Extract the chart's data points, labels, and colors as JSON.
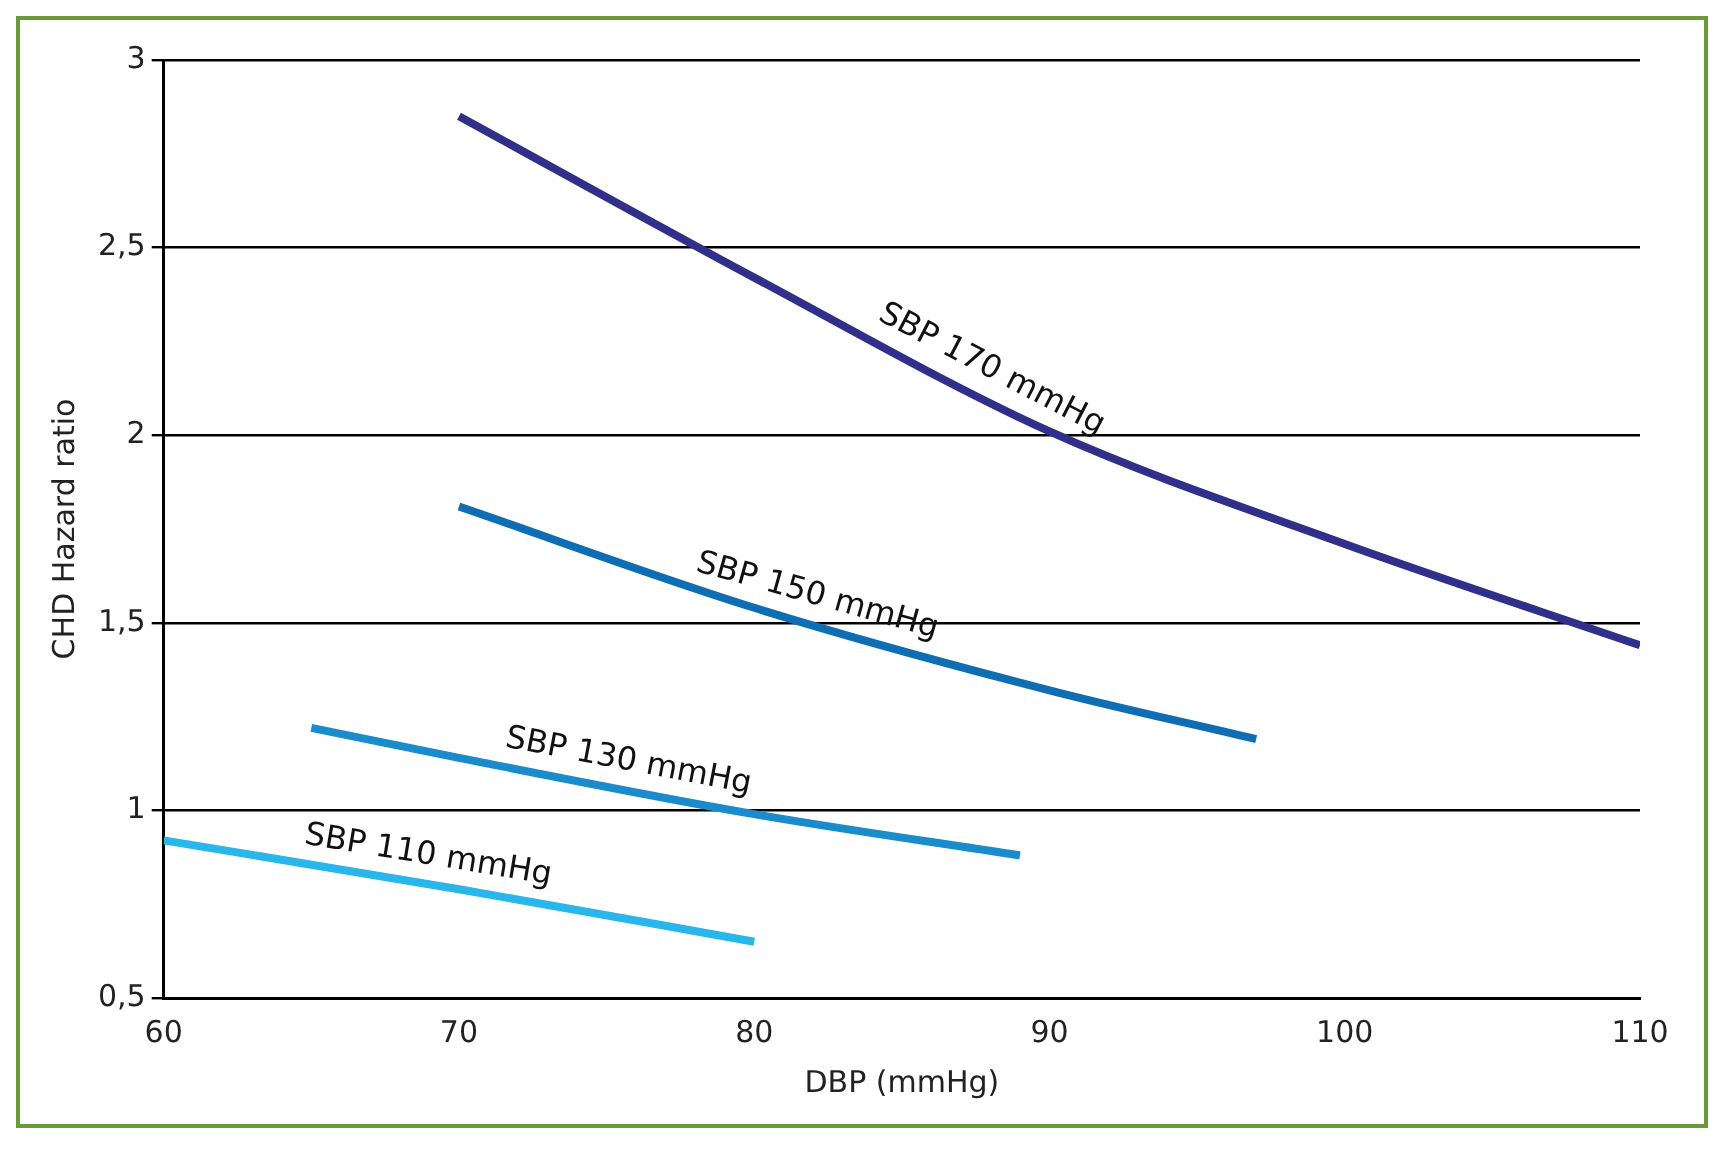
{
  "chart_data": {
    "type": "line",
    "xlabel": "DBP (mmHg)",
    "ylabel": "CHD Hazard ratio",
    "xlim": [
      60,
      110
    ],
    "xticks": [
      60,
      70,
      80,
      90,
      100,
      110
    ],
    "ylim": [
      0.5,
      3
    ],
    "yticks": [
      {
        "value": 0.5,
        "label": "0,5"
      },
      1,
      {
        "value": 1.5,
        "label": "1,5"
      },
      2,
      {
        "value": 2.5,
        "label": "2,5"
      },
      3
    ],
    "grid": "y",
    "legend": false,
    "marker": "none",
    "line_style": "solid",
    "series": [
      {
        "name": "SBP 170 mmHg",
        "color": "#302f8a",
        "x": [
          70,
          80,
          90,
          100,
          110
        ],
        "values": [
          2.85,
          2.42,
          2.01,
          1.71,
          1.44
        ]
      },
      {
        "name": "SBP 150 mmHg",
        "color": "#0f6db3",
        "x": [
          70,
          80,
          90,
          97
        ],
        "values": [
          1.81,
          1.54,
          1.32,
          1.19
        ]
      },
      {
        "name": "SBP 130 mmHg",
        "color": "#1a8ccc",
        "x": [
          65,
          70,
          80,
          89
        ],
        "values": [
          1.22,
          1.14,
          0.99,
          0.88
        ]
      },
      {
        "name": "SBP 110 mmHg",
        "color": "#29b6ea",
        "x": [
          60,
          70,
          80
        ],
        "values": [
          0.92,
          0.79,
          0.65
        ]
      }
    ]
  }
}
